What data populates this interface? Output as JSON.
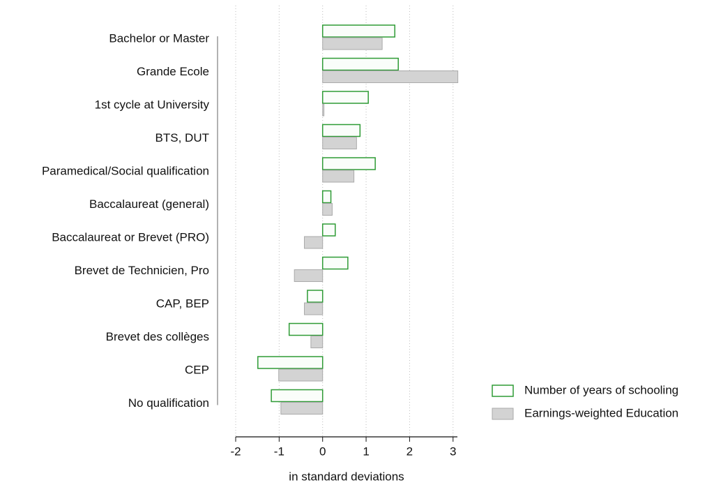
{
  "chart_data": {
    "type": "bar",
    "orientation": "horizontal",
    "xlabel": "in standard deviations",
    "categories": [
      "Bachelor or Master",
      "Grande Ecole",
      "1st cycle at University",
      "BTS, DUT",
      "Paramedical/Social qualification",
      "Baccalaureat (general)",
      "Baccalaureat or Brevet (PRO)",
      "Brevet de Technicien, Pro",
      "CAP, BEP",
      "Brevet des collèges",
      "CEP",
      "No qualification"
    ],
    "series": [
      {
        "name": "Number of years of schooling",
        "color": "#2e9b35",
        "style": "outline",
        "values": [
          1.66,
          1.74,
          1.05,
          0.86,
          1.21,
          0.19,
          0.29,
          0.58,
          -0.35,
          -0.77,
          -1.49,
          -1.18
        ]
      },
      {
        "name": "Earnings-weighted Education",
        "color": "#d3d3d3",
        "style": "filled",
        "values": [
          1.37,
          3.11,
          0.03,
          0.78,
          0.72,
          0.22,
          -0.42,
          -0.65,
          -0.42,
          -0.27,
          -1.01,
          -0.96
        ]
      }
    ],
    "xlim": [
      -2,
      3.1
    ],
    "xticks": [
      -2,
      -1,
      0,
      1,
      2,
      3
    ],
    "grid": true,
    "legend": "bottom-right"
  }
}
